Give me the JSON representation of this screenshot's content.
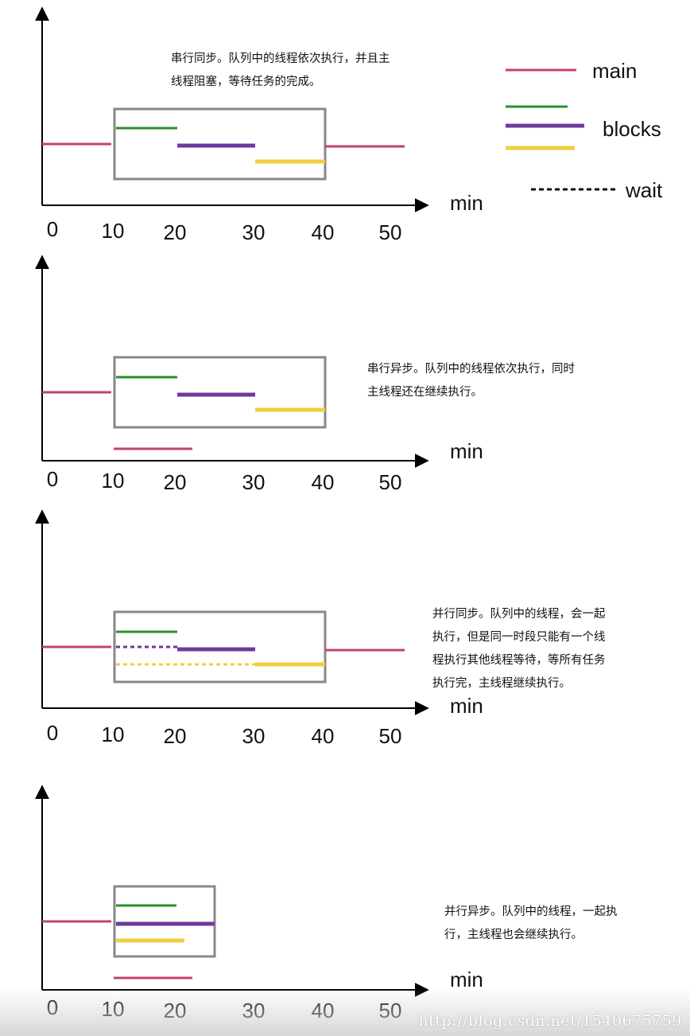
{
  "legend": {
    "main": "main",
    "blocks": "blocks",
    "wait": "wait"
  },
  "colors": {
    "main": "#c2436e",
    "green": "#2b8f2b",
    "purple": "#6e3a9e",
    "yellow": "#f0cf3c",
    "box": "#888888",
    "axis": "#000000"
  },
  "x_ticks": [
    "0",
    "10",
    "20",
    "30",
    "40",
    "50"
  ],
  "axis_unit": "min",
  "panels": [
    {
      "note": "串行同步。队列中的线程依次执行，并且主\n线程阻塞，等待任务的完成。"
    },
    {
      "note": "串行异步。队列中的线程依次执行，同时\n主线程还在继续执行。"
    },
    {
      "note": "并行同步。队列中的线程，会一起\n执行，但是同一时段只能有一个线\n程执行其他线程等待，等所有任务\n执行完，主线程继续执行。"
    },
    {
      "note": "并行异步。队列中的线程，一起执\n行，主线程也会继续执行。"
    }
  ],
  "watermark": "http://blog.csdn.net/1540675759"
}
